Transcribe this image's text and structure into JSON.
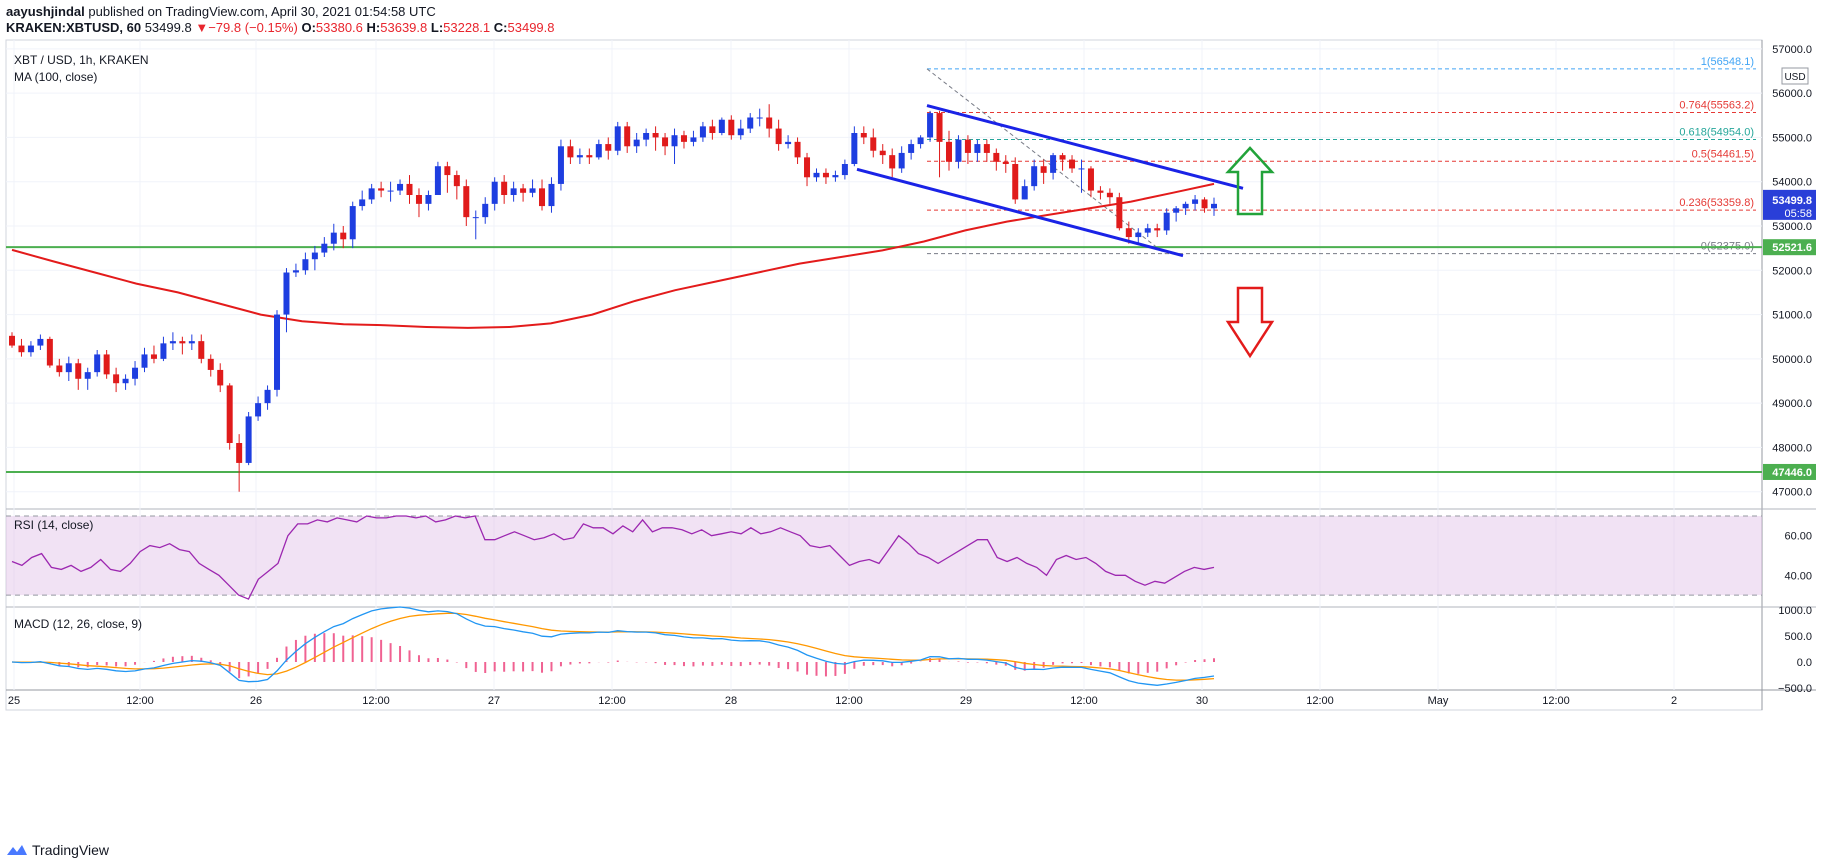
{
  "header": {
    "author": "aayushjindal",
    "published": "published on TradingView.com, April 30, 2021 01:54:58 UTC",
    "symbol": "KRAKEN:XBTUSD, 60",
    "last": "53499.8",
    "arrow": "▼",
    "change": "−79.8 (−0.15%)",
    "o_label": "O:",
    "o": "53380.6",
    "h_label": "H:",
    "h": "53639.8",
    "l_label": "L:",
    "l": "53228.1",
    "c_label": "C:",
    "c": "53499.8"
  },
  "footer": {
    "brand": "TradingView"
  },
  "chart_data": [
    {
      "type": "candlestick",
      "title": "XBT / USD, 1h, KRAKEN",
      "indicator_label": "MA (100, close)",
      "currency": "USD",
      "ylim": [
        46700,
        57200
      ],
      "x_ticks": [
        "25",
        "12:00",
        "26",
        "12:00",
        "27",
        "12:00",
        "28",
        "12:00",
        "29",
        "12:00",
        "30",
        "12:00",
        "May",
        "12:00",
        "2"
      ],
      "y_ticks": [
        47000,
        48000,
        49000,
        50000,
        51000,
        52000,
        53000,
        54000,
        55000,
        56000,
        57000
      ],
      "price_tag": "53499.8",
      "countdown": "05:58",
      "levels": [
        {
          "label": "52521.6",
          "value": 52521.6,
          "color": "#4caf50"
        },
        {
          "label": "47446.0",
          "value": 47446.0,
          "color": "#4caf50"
        }
      ],
      "fibonacci": [
        {
          "ratio": "1",
          "value": 56548.1,
          "text": "1(56548.1)",
          "color": "#42a5f5"
        },
        {
          "ratio": "0.764",
          "value": 55563.2,
          "text": "0.764(55563.2)",
          "color": "#e53935"
        },
        {
          "ratio": "0.618",
          "value": 54954.0,
          "text": "0.618(54954.0)",
          "color": "#26a69a"
        },
        {
          "ratio": "0.5",
          "value": 54461.5,
          "text": "0.5(54461.5)",
          "color": "#e53935"
        },
        {
          "ratio": "0.236",
          "value": 53359.8,
          "text": "0.236(53359.8)",
          "color": "#e53935"
        },
        {
          "ratio": "0",
          "value": 52375.0,
          "text": "0(52375.0)",
          "color": "#787b86"
        }
      ],
      "ma100": [
        52460,
        52200,
        51950,
        51700,
        51500,
        51250,
        51000,
        50850,
        50780,
        50760,
        50720,
        50700,
        50720,
        50800,
        51000,
        51300,
        51550,
        51750,
        51950,
        52150,
        52300,
        52450,
        52650,
        52900,
        53100,
        53250,
        53400,
        53550,
        53750,
        53950
      ],
      "candles": [
        [
          50520,
          50300,
          50600,
          50250
        ],
        [
          50300,
          50150,
          50450,
          50050
        ],
        [
          50150,
          50300,
          50400,
          50050
        ],
        [
          50300,
          50450,
          50550,
          50200
        ],
        [
          50450,
          49850,
          50500,
          49800
        ],
        [
          49850,
          49700,
          50000,
          49600
        ],
        [
          49700,
          49900,
          50050,
          49500
        ],
        [
          49900,
          49550,
          50000,
          49300
        ],
        [
          49550,
          49700,
          49800,
          49300
        ],
        [
          49700,
          50100,
          50200,
          49600
        ],
        [
          50100,
          49650,
          50200,
          49550
        ],
        [
          49650,
          49450,
          49800,
          49250
        ],
        [
          49450,
          49550,
          49650,
          49300
        ],
        [
          49550,
          49800,
          49950,
          49400
        ],
        [
          49800,
          50100,
          50250,
          49700
        ],
        [
          50100,
          50000,
          50300,
          49900
        ],
        [
          50000,
          50350,
          50500,
          49950
        ],
        [
          50350,
          50400,
          50600,
          50200
        ],
        [
          50400,
          50350,
          50500,
          50100
        ],
        [
          50350,
          50400,
          50550,
          50200
        ],
        [
          50400,
          50000,
          50550,
          49900
        ],
        [
          50000,
          49750,
          50100,
          49600
        ],
        [
          49750,
          49400,
          49900,
          49250
        ],
        [
          49400,
          48100,
          49450,
          47950
        ],
        [
          48100,
          47650,
          48300,
          47000
        ],
        [
          47650,
          48700,
          48800,
          47600
        ],
        [
          48700,
          49000,
          49150,
          48600
        ],
        [
          49000,
          49300,
          49400,
          48850
        ],
        [
          49300,
          51000,
          51100,
          49150
        ],
        [
          51000,
          51950,
          52050,
          50600
        ],
        [
          51950,
          52000,
          52150,
          51850
        ],
        [
          52000,
          52250,
          52400,
          51900
        ],
        [
          52250,
          52400,
          52550,
          52000
        ],
        [
          52400,
          52600,
          52750,
          52300
        ],
        [
          52600,
          52850,
          53050,
          52450
        ],
        [
          52850,
          52700,
          53000,
          52500
        ],
        [
          52700,
          53450,
          53550,
          52500
        ],
        [
          53450,
          53600,
          53800,
          53350
        ],
        [
          53600,
          53850,
          53950,
          53500
        ],
        [
          53850,
          53800,
          54000,
          53650
        ],
        [
          53800,
          53800,
          54000,
          53550
        ],
        [
          53800,
          53950,
          54050,
          53700
        ],
        [
          53950,
          53700,
          54150,
          53500
        ],
        [
          53700,
          53500,
          53850,
          53200
        ],
        [
          53500,
          53700,
          53800,
          53350
        ],
        [
          53700,
          54350,
          54450,
          53700
        ],
        [
          54350,
          54150,
          54450,
          53750
        ],
        [
          54150,
          53900,
          54250,
          53600
        ],
        [
          53900,
          53200,
          54050,
          53000
        ],
        [
          53200,
          53200,
          53350,
          52700
        ],
        [
          53200,
          53500,
          53650,
          53050
        ],
        [
          53500,
          54000,
          54100,
          53350
        ],
        [
          54000,
          53700,
          54150,
          53500
        ],
        [
          53700,
          53850,
          54000,
          53550
        ],
        [
          53850,
          53750,
          53950,
          53550
        ],
        [
          53750,
          53850,
          54050,
          53650
        ],
        [
          53850,
          53450,
          54050,
          53350
        ],
        [
          53450,
          53950,
          54100,
          53300
        ],
        [
          53950,
          54800,
          54950,
          53800
        ],
        [
          54800,
          54550,
          54950,
          54400
        ],
        [
          54550,
          54600,
          54750,
          54400
        ],
        [
          54600,
          54550,
          54750,
          54400
        ],
        [
          54550,
          54850,
          54950,
          54500
        ],
        [
          54850,
          54700,
          55000,
          54500
        ],
        [
          54700,
          55250,
          55350,
          54600
        ],
        [
          55250,
          54800,
          55350,
          54650
        ],
        [
          54800,
          54950,
          55100,
          54650
        ],
        [
          54950,
          55100,
          55200,
          54800
        ],
        [
          55100,
          55000,
          55250,
          54700
        ],
        [
          55000,
          54800,
          55100,
          54600
        ],
        [
          54800,
          55050,
          55200,
          54400
        ],
        [
          55050,
          54900,
          55150,
          54750
        ],
        [
          54900,
          55000,
          55150,
          54800
        ],
        [
          55000,
          55250,
          55350,
          54900
        ],
        [
          55250,
          55100,
          55400,
          54950
        ],
        [
          55100,
          55400,
          55450,
          55050
        ],
        [
          55400,
          55050,
          55500,
          54950
        ],
        [
          55050,
          55200,
          55400,
          54950
        ],
        [
          55200,
          55450,
          55550,
          55100
        ],
        [
          55450,
          55450,
          55650,
          55250
        ],
        [
          55450,
          55200,
          55750,
          55000
        ],
        [
          55200,
          54850,
          55400,
          54700
        ],
        [
          54850,
          54900,
          55050,
          54750
        ],
        [
          54900,
          54550,
          55000,
          54400
        ],
        [
          54550,
          54100,
          54650,
          53900
        ],
        [
          54100,
          54200,
          54300,
          54000
        ],
        [
          54200,
          54100,
          54300,
          53950
        ],
        [
          54100,
          54150,
          54250,
          54000
        ],
        [
          54150,
          54400,
          54500,
          54050
        ],
        [
          54400,
          55100,
          55250,
          54350
        ],
        [
          55100,
          55000,
          55250,
          54850
        ],
        [
          55000,
          54700,
          55200,
          54550
        ],
        [
          54700,
          54600,
          54850,
          54400
        ],
        [
          54600,
          54300,
          54750,
          54100
        ],
        [
          54300,
          54650,
          54800,
          54200
        ],
        [
          54650,
          54850,
          54950,
          54500
        ],
        [
          54850,
          55000,
          55050,
          54750
        ],
        [
          55000,
          55550,
          55600,
          54900
        ],
        [
          55550,
          54900,
          55600,
          54100
        ],
        [
          54900,
          54450,
          55150,
          54250
        ],
        [
          54450,
          54950,
          55050,
          54300
        ],
        [
          54950,
          54650,
          55050,
          54400
        ],
        [
          54650,
          54850,
          54950,
          54450
        ],
        [
          54850,
          54650,
          54950,
          54450
        ],
        [
          54650,
          54450,
          54750,
          54250
        ],
        [
          54450,
          54400,
          54600,
          54200
        ],
        [
          54400,
          53600,
          54550,
          53500
        ],
        [
          53600,
          53900,
          54050,
          53600
        ],
        [
          53900,
          54350,
          54500,
          53800
        ],
        [
          54350,
          54200,
          54500,
          53950
        ],
        [
          54200,
          54600,
          54650,
          54050
        ],
        [
          54600,
          54500,
          54650,
          54250
        ],
        [
          54500,
          54300,
          54600,
          54200
        ],
        [
          54300,
          54300,
          54500,
          53750
        ],
        [
          54300,
          53800,
          54350,
          53650
        ],
        [
          53800,
          53750,
          53900,
          53600
        ],
        [
          53750,
          53650,
          53850,
          53500
        ],
        [
          53650,
          52950,
          53750,
          52900
        ],
        [
          52950,
          52750,
          53100,
          52600
        ],
        [
          52750,
          52850,
          52950,
          52600
        ],
        [
          52850,
          52950,
          53050,
          52750
        ],
        [
          52950,
          52900,
          53050,
          52750
        ],
        [
          52900,
          53300,
          53400,
          52800
        ],
        [
          53300,
          53400,
          53450,
          53100
        ],
        [
          53400,
          53500,
          53550,
          53250
        ],
        [
          53500,
          53600,
          53700,
          53350
        ],
        [
          53600,
          53400,
          53650,
          53300
        ],
        [
          53400,
          53500,
          53640,
          53228
        ]
      ],
      "rsi": {
        "label": "RSI (14, close)",
        "y_ticks": [
          40,
          60
        ],
        "bands": [
          30,
          70
        ],
        "values": [
          47,
          45,
          49,
          51,
          44,
          43,
          45,
          42,
          44,
          48,
          43,
          42,
          46,
          52,
          55,
          54,
          56,
          53,
          52,
          46,
          43,
          40,
          35,
          30,
          28,
          38,
          42,
          46,
          60,
          66,
          66,
          68,
          67,
          69,
          68,
          67,
          70,
          69,
          69,
          70,
          70,
          69,
          70,
          67,
          68,
          70,
          69,
          70,
          58,
          58,
          60,
          62,
          60,
          58,
          59,
          61,
          58,
          59,
          66,
          64,
          64,
          61,
          65,
          62,
          68,
          62,
          64,
          64,
          63,
          61,
          63,
          60,
          61,
          62,
          61,
          64,
          61,
          62,
          64,
          62,
          60,
          55,
          54,
          55,
          50,
          45,
          47,
          48,
          46,
          53,
          60,
          56,
          51,
          49,
          46,
          49,
          52,
          55,
          58,
          58,
          49,
          47,
          49,
          46,
          44,
          40,
          48,
          50,
          48,
          49,
          46,
          42,
          40,
          40,
          37,
          35,
          37,
          36,
          39,
          42,
          44,
          43,
          44
        ],
        "line_color": "#9c27b0",
        "fill_color": "#e1bee7"
      },
      "macd": {
        "label": "MACD (12, 26, close, 9)",
        "y_ticks": [
          "1000.0",
          "500.0",
          "0.0",
          "−500.0"
        ],
        "ylim": [
          -500,
          1000
        ],
        "series": [
          {
            "name": "MACD",
            "color": "#2196f3"
          },
          {
            "name": "Signal",
            "color": "#ff9800"
          },
          {
            "name": "Histogram",
            "color": "#e91e63"
          }
        ]
      }
    }
  ]
}
